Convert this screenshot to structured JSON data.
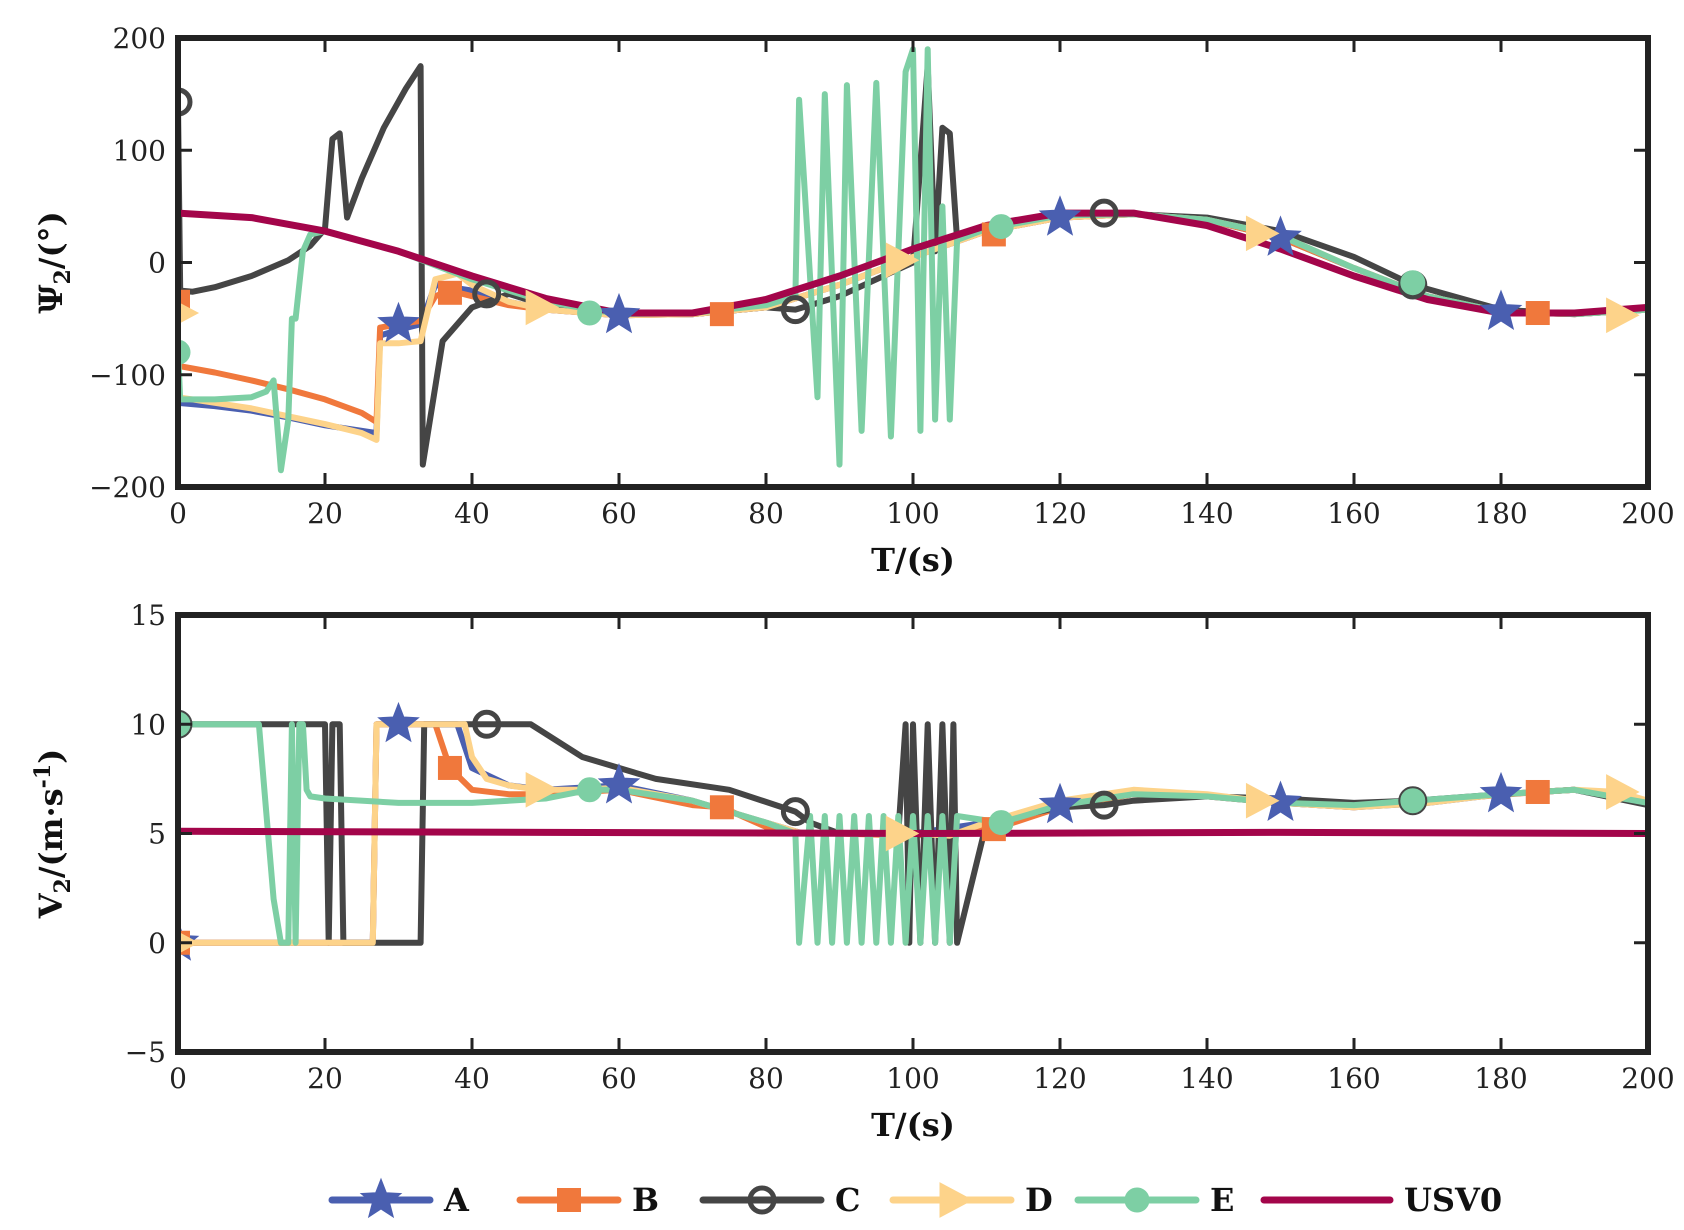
{
  "chart_data": [
    {
      "type": "line",
      "panel": "top",
      "xlabel": "T/(s)",
      "ylabel_main": "Ψ",
      "ylabel_sub": "2",
      "ylabel_rest": "/(°)",
      "xlim": [
        0,
        200
      ],
      "ylim": [
        -200,
        200
      ],
      "xticks": [
        0,
        20,
        40,
        60,
        80,
        100,
        120,
        140,
        160,
        180,
        200
      ],
      "yticks": [
        -200,
        -100,
        0,
        100,
        200
      ],
      "xtick_labels": [
        "0",
        "20",
        "40",
        "60",
        "80",
        "100",
        "120",
        "140",
        "160",
        "180",
        "200"
      ],
      "ytick_labels": [
        "−200",
        "−100",
        "0",
        "100",
        "200"
      ],
      "grid": false,
      "series": [
        {
          "name": "A",
          "x": [
            0,
            5,
            10,
            15,
            20,
            25,
            27,
            27.5,
            30,
            33,
            35,
            40,
            45,
            50,
            60,
            70,
            80,
            90,
            100,
            110,
            120,
            130,
            140,
            150,
            160,
            170,
            180,
            190,
            200
          ],
          "y": [
            -125,
            -128,
            -132,
            -138,
            -145,
            -150,
            -152,
            -65,
            -60,
            -55,
            -20,
            -25,
            -35,
            -42,
            -47,
            -46,
            -40,
            -20,
            5,
            28,
            40,
            43,
            38,
            22,
            -5,
            -30,
            -44,
            -46,
            -42
          ],
          "marker_x": [
            30,
            60,
            120,
            150,
            180
          ],
          "marker_y": [
            -55,
            -47,
            40,
            22,
            -44
          ]
        },
        {
          "name": "B",
          "x": [
            0,
            5,
            10,
            15,
            20,
            25,
            27,
            27.5,
            30,
            33,
            35,
            37,
            40,
            45,
            50,
            60,
            70,
            80,
            90,
            100,
            110,
            120,
            130,
            140,
            150,
            160,
            170,
            180,
            190,
            200
          ],
          "y": [
            -92,
            -98,
            -105,
            -113,
            -122,
            -134,
            -142,
            -58,
            -55,
            -52,
            -30,
            -25,
            -30,
            -38,
            -42,
            -47,
            -46,
            -40,
            -20,
            5,
            28,
            40,
            43,
            38,
            22,
            -5,
            -30,
            -44,
            -46,
            -42
          ],
          "marker_x": [
            0,
            37,
            74,
            111,
            185
          ],
          "marker_y": [
            -35,
            -27,
            -46,
            25,
            -45
          ]
        },
        {
          "name": "C",
          "x": [
            0,
            0.3,
            2,
            5,
            10,
            15,
            18,
            20,
            21,
            22,
            23,
            25,
            28,
            31,
            33,
            33.3,
            36,
            40,
            45,
            50,
            60,
            70,
            80,
            84,
            86,
            90,
            100,
            102,
            103,
            104,
            105,
            106,
            110,
            120,
            126,
            130,
            140,
            150,
            160,
            168,
            180,
            190,
            200
          ],
          "y": [
            140,
            -25,
            -26,
            -22,
            -12,
            2,
            15,
            30,
            110,
            115,
            40,
            75,
            120,
            155,
            175,
            -180,
            -70,
            -40,
            -28,
            -38,
            -46,
            -46,
            -40,
            -42,
            -38,
            -30,
            0,
            175,
            10,
            120,
            115,
            20,
            30,
            42,
            44,
            43,
            40,
            28,
            5,
            -20,
            -42,
            -46,
            -42
          ],
          "marker_x": [
            0,
            42,
            84,
            126,
            168
          ],
          "marker_y": [
            143,
            -28,
            -42,
            44,
            -20
          ]
        },
        {
          "name": "D",
          "x": [
            0,
            5,
            10,
            15,
            20,
            25,
            27,
            27.5,
            30,
            33,
            35,
            38,
            40,
            45,
            50,
            60,
            70,
            80,
            90,
            100,
            110,
            120,
            130,
            140,
            150,
            160,
            170,
            180,
            190,
            200
          ],
          "y": [
            -120,
            -125,
            -130,
            -137,
            -144,
            -152,
            -158,
            -72,
            -72,
            -70,
            -15,
            -10,
            -20,
            -35,
            -42,
            -47,
            -46,
            -40,
            -20,
            5,
            28,
            40,
            43,
            38,
            24,
            -5,
            -30,
            -44,
            -46,
            -42
          ],
          "marker_x": [
            0,
            49,
            98,
            147,
            196
          ],
          "marker_y": [
            -45,
            -40,
            2,
            26,
            -47
          ]
        },
        {
          "name": "E",
          "x": [
            0,
            0.3,
            5,
            10,
            12,
            13,
            14,
            15,
            15.5,
            16,
            17,
            18,
            20,
            30,
            40,
            50,
            60,
            70,
            80,
            84,
            84.5,
            87,
            88,
            90,
            91,
            93,
            95,
            97,
            99,
            100,
            101,
            102,
            103,
            104,
            105,
            106,
            110,
            120,
            130,
            140,
            150,
            160,
            170,
            180,
            190,
            200
          ],
          "y": [
            -78,
            -122,
            -122,
            -120,
            -115,
            -105,
            -185,
            -140,
            -50,
            -50,
            10,
            25,
            28,
            10,
            -15,
            -35,
            -46,
            -45,
            -38,
            -30,
            145,
            -120,
            150,
            -180,
            158,
            -150,
            160,
            -155,
            170,
            190,
            -150,
            190,
            -140,
            50,
            -140,
            20,
            30,
            42,
            43,
            38,
            24,
            -5,
            -30,
            -44,
            -46,
            -42
          ],
          "marker_x": [
            0,
            56,
            112,
            168
          ],
          "marker_y": [
            -80,
            -45,
            32,
            -18
          ]
        },
        {
          "name": "USV0",
          "x": [
            0,
            10,
            20,
            30,
            40,
            50,
            60,
            70,
            80,
            90,
            100,
            110,
            120,
            130,
            140,
            150,
            160,
            170,
            180,
            190,
            200
          ],
          "y": [
            44,
            40,
            28,
            10,
            -12,
            -32,
            -45,
            -45,
            -33,
            -12,
            12,
            33,
            44,
            44,
            33,
            12,
            -12,
            -33,
            -45,
            -45,
            -40
          ],
          "marker_x": [],
          "marker_y": []
        }
      ]
    },
    {
      "type": "line",
      "panel": "bottom",
      "xlabel": "T/(s)",
      "ylabel_main": "V",
      "ylabel_sub": "2",
      "ylabel_rest": "/(m·s",
      "ylabel_sup": "-1",
      "ylabel_close": ")",
      "xlim": [
        0,
        200
      ],
      "ylim": [
        -5,
        15
      ],
      "xticks": [
        0,
        20,
        40,
        60,
        80,
        100,
        120,
        140,
        160,
        180,
        200
      ],
      "yticks": [
        -5,
        0,
        5,
        10,
        15
      ],
      "xtick_labels": [
        "0",
        "20",
        "40",
        "60",
        "80",
        "100",
        "120",
        "140",
        "160",
        "180",
        "200"
      ],
      "ytick_labels": [
        "−5",
        "0",
        "5",
        "10",
        "15"
      ],
      "grid": false,
      "series": [
        {
          "name": "A",
          "x": [
            0,
            10,
            20,
            26.5,
            27,
            30,
            38,
            40,
            45,
            50,
            60,
            70,
            80,
            85,
            90,
            100,
            110,
            120,
            130,
            140,
            150,
            160,
            170,
            180,
            190,
            200
          ],
          "y": [
            0,
            0,
            0,
            0,
            10,
            10,
            10,
            8,
            7.2,
            7,
            7.2,
            6.5,
            5.5,
            5,
            5,
            5,
            5.5,
            6.3,
            6.8,
            6.7,
            6.4,
            6.2,
            6.4,
            6.8,
            7,
            6.5
          ],
          "marker_x": [
            0,
            30,
            60,
            120,
            150,
            180
          ],
          "marker_y": [
            0,
            10,
            7.2,
            6.3,
            6.4,
            6.8
          ]
        },
        {
          "name": "B",
          "x": [
            0,
            10,
            20,
            26.5,
            27,
            30,
            35,
            37,
            40,
            45,
            50,
            60,
            70,
            74,
            80,
            85,
            90,
            100,
            111,
            120,
            130,
            140,
            150,
            160,
            170,
            185,
            190,
            200
          ],
          "y": [
            0,
            0,
            0,
            0,
            10,
            10,
            10,
            8,
            7,
            6.8,
            6.8,
            7,
            6.3,
            6.2,
            5.3,
            5,
            5,
            4.9,
            5.2,
            6.2,
            6.8,
            6.7,
            6.4,
            6.2,
            6.5,
            6.9,
            7,
            6.5
          ],
          "marker_x": [
            0,
            37,
            74,
            111,
            185
          ],
          "marker_y": [
            0,
            8,
            6.2,
            5.2,
            6.9
          ]
        },
        {
          "name": "C",
          "x": [
            0,
            0.3,
            10,
            20,
            20.5,
            21,
            22,
            22.5,
            25,
            33,
            33.5,
            36,
            42,
            48,
            55,
            65,
            75,
            84,
            86,
            90,
            98,
            99,
            99.5,
            100,
            101,
            102,
            103,
            104,
            105,
            105.5,
            106,
            110,
            120,
            126,
            130,
            140,
            150,
            160,
            168,
            180,
            190,
            200
          ],
          "y": [
            10,
            10,
            10,
            10,
            0,
            10,
            10,
            0,
            0,
            0,
            10,
            10,
            10,
            10,
            8.5,
            7.5,
            7,
            6,
            5.5,
            5,
            5,
            10,
            0,
            10,
            0,
            10,
            0,
            10,
            0,
            10,
            0,
            5.5,
            6.2,
            6.3,
            6.5,
            6.7,
            6.6,
            6.4,
            6.5,
            6.8,
            7,
            6.3
          ],
          "marker_x": [
            0,
            42,
            84,
            126,
            168
          ],
          "marker_y": [
            10,
            10,
            6,
            6.3,
            6.5
          ]
        },
        {
          "name": "D",
          "x": [
            0,
            10,
            20,
            26.5,
            27,
            30,
            35,
            39,
            40,
            42,
            45,
            49,
            55,
            60,
            70,
            80,
            85,
            90,
            100,
            105,
            110,
            120,
            130,
            140,
            147,
            150,
            160,
            170,
            180,
            190,
            196,
            200
          ],
          "y": [
            0,
            0,
            0,
            0,
            10,
            10,
            10,
            10,
            8.5,
            7.5,
            7.2,
            7,
            7,
            7.1,
            6.5,
            5.5,
            5,
            5,
            5,
            4.9,
            5.5,
            6.5,
            7,
            6.8,
            6.5,
            6.4,
            6.2,
            6.4,
            6.8,
            7,
            6.9,
            6.5
          ],
          "marker_x": [
            0,
            49,
            98,
            147,
            196
          ],
          "marker_y": [
            0,
            7,
            5,
            6.5,
            6.9
          ]
        },
        {
          "name": "E",
          "x": [
            0,
            5,
            10,
            11,
            12,
            13,
            14,
            15,
            15.5,
            16,
            16.5,
            17,
            17.5,
            18,
            20,
            30,
            40,
            50,
            56,
            60,
            70,
            80,
            84,
            84.5,
            86,
            87,
            88,
            89,
            90,
            91,
            92,
            93,
            94,
            95,
            96,
            97,
            98,
            99,
            100,
            101,
            102,
            103,
            104,
            105,
            106,
            112,
            120,
            130,
            140,
            150,
            160,
            168,
            180,
            190,
            200
          ],
          "y": [
            10,
            10,
            10,
            10,
            6,
            2,
            0,
            0,
            10,
            0,
            10,
            10,
            7,
            6.7,
            6.6,
            6.4,
            6.4,
            6.6,
            7,
            7,
            6.5,
            5.5,
            5,
            0,
            5.8,
            0,
            5.8,
            0,
            5.8,
            0,
            5.8,
            0,
            5.8,
            0,
            5.8,
            0,
            5.8,
            0,
            5.8,
            0,
            5.8,
            0,
            5.8,
            0,
            5.8,
            5.5,
            6.3,
            6.8,
            6.7,
            6.4,
            6.3,
            6.5,
            6.8,
            7,
            6.4
          ],
          "marker_x": [
            0,
            56,
            112,
            168
          ],
          "marker_y": [
            10,
            7,
            5.5,
            6.5
          ]
        },
        {
          "name": "USV0",
          "x": [
            0,
            50,
            100,
            150,
            200
          ],
          "y": [
            5.1,
            5.05,
            5.0,
            5.05,
            5.0
          ],
          "marker_x": [],
          "marker_y": []
        }
      ]
    }
  ],
  "legend": {
    "placement": "bottom-center",
    "entries": [
      {
        "label": "A",
        "color": "#4a5fb0",
        "marker": "star"
      },
      {
        "label": "B",
        "color": "#f0783c",
        "marker": "square"
      },
      {
        "label": "C",
        "color": "#454545",
        "marker": "circle-open"
      },
      {
        "label": "D",
        "color": "#fdd38a",
        "marker": "triangle-right"
      },
      {
        "label": "E",
        "color": "#7dcfa4",
        "marker": "circle-filled"
      },
      {
        "label": "USV0",
        "color": "#a3054a",
        "marker": "none"
      }
    ]
  }
}
